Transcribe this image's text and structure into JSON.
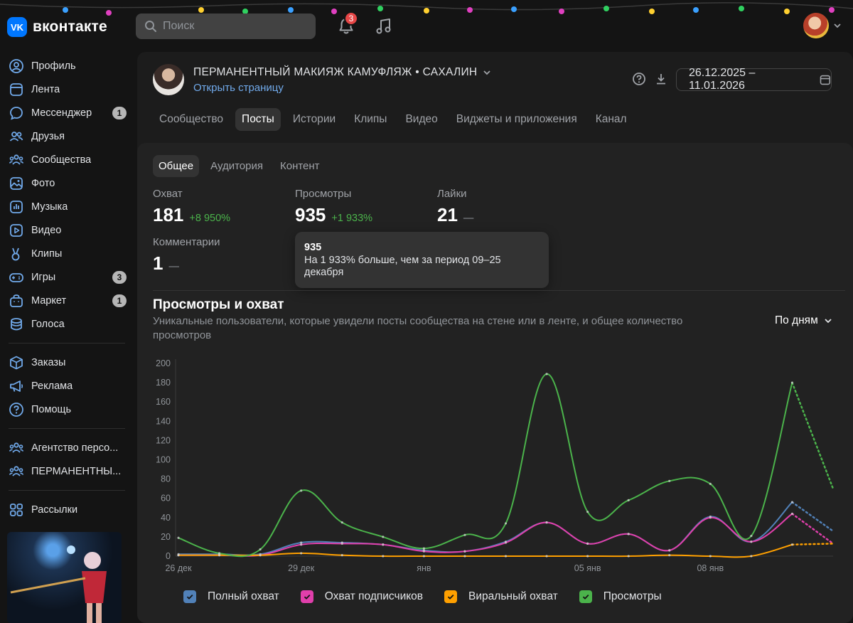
{
  "app": {
    "logo_mark": "VK",
    "logo_text": "вконтакте"
  },
  "header": {
    "search_placeholder": "Поиск",
    "notifications_count": "3"
  },
  "sidebar": {
    "items": [
      {
        "name": "profile",
        "label": "Профиль",
        "icon": "user-circle-icon",
        "badge": ""
      },
      {
        "name": "feed",
        "label": "Лента",
        "icon": "feed-icon",
        "badge": ""
      },
      {
        "name": "messenger",
        "label": "Мессенджер",
        "icon": "message-icon",
        "badge": "1"
      },
      {
        "name": "friends",
        "label": "Друзья",
        "icon": "users-icon",
        "badge": ""
      },
      {
        "name": "communities",
        "label": "Сообщества",
        "icon": "groups-icon",
        "badge": ""
      },
      {
        "name": "photo",
        "label": "Фото",
        "icon": "photo-icon",
        "badge": ""
      },
      {
        "name": "music",
        "label": "Музыка",
        "icon": "music-icon",
        "badge": ""
      },
      {
        "name": "video",
        "label": "Видео",
        "icon": "video-icon",
        "badge": ""
      },
      {
        "name": "clips",
        "label": "Клипы",
        "icon": "clips-icon",
        "badge": ""
      },
      {
        "name": "games",
        "label": "Игры",
        "icon": "gamepad-icon",
        "badge": "3"
      },
      {
        "name": "market",
        "label": "Маркет",
        "icon": "bag-icon",
        "badge": "1"
      },
      {
        "name": "votes",
        "label": "Голоса",
        "icon": "coins-icon",
        "badge": ""
      }
    ],
    "items2": [
      {
        "name": "orders",
        "label": "Заказы",
        "icon": "box-icon"
      },
      {
        "name": "ads",
        "label": "Реклама",
        "icon": "megaphone-icon"
      },
      {
        "name": "help",
        "label": "Помощь",
        "icon": "help-icon"
      }
    ],
    "items3": [
      {
        "name": "agency",
        "label": "Агентство персо...",
        "icon": "groups-icon"
      },
      {
        "name": "permanent",
        "label": "ПЕРМАНЕНТНЫ...",
        "icon": "groups-icon"
      }
    ],
    "items4": [
      {
        "name": "mailings",
        "label": "Рассылки",
        "icon": "grid-icon"
      }
    ]
  },
  "community": {
    "title": "ПЕРМАНЕНТНЫЙ МАКИЯЖ КАМУФЛЯЖ • САХАЛИН",
    "open_link": "Открыть страницу",
    "date_range": "26.12.2025 – 11.01.2026"
  },
  "tabs": [
    "Сообщество",
    "Посты",
    "Истории",
    "Клипы",
    "Видео",
    "Виджеты и приложения",
    "Канал"
  ],
  "subtabs": [
    "Общее",
    "Аудитория",
    "Контент"
  ],
  "metrics": [
    {
      "label": "Охват",
      "value": "181",
      "delta": "+8 950%"
    },
    {
      "label": "Просмотры",
      "value": "935",
      "delta": "+1 933%"
    },
    {
      "label": "Лайки",
      "value": "21",
      "delta": "—"
    },
    {
      "label": "Комментарии",
      "value": "1",
      "delta": "—"
    }
  ],
  "tooltip": {
    "title": "935",
    "text": "На 1 933% больше, чем за период 09–25 декабря"
  },
  "chart_section": {
    "title": "Просмотры и охват",
    "subtitle": "Уникальные пользователи, которые увидели посты сообщества на стене или в ленте, и общее количество просмотров",
    "period": "По дням"
  },
  "chart_data": {
    "type": "line",
    "x": [
      "26 дек",
      "27 дек",
      "28 дек",
      "29 дек",
      "30 дек",
      "31 дек",
      "01 янв",
      "02 янв",
      "03 янв",
      "04 янв",
      "05 янв",
      "06 янв",
      "07 янв",
      "08 янв",
      "09 янв",
      "10 янв",
      "11 янв"
    ],
    "x_tick_labels": [
      "26 дек",
      "29 дек",
      "янв",
      "05 янв",
      "08 янв"
    ],
    "x_tick_index": [
      0,
      3,
      6,
      10,
      13
    ],
    "ylim": [
      0,
      200
    ],
    "y_ticks": [
      0,
      20,
      40,
      60,
      80,
      100,
      120,
      140,
      160,
      180,
      200
    ],
    "series": [
      {
        "name": "Полный охват",
        "color": "#5181b8",
        "values": [
          2,
          2,
          2,
          14,
          14,
          12,
          6,
          5,
          15,
          35,
          13,
          23,
          6,
          41,
          15,
          56,
          26
        ],
        "dashed_from": 15
      },
      {
        "name": "Охват подписчиков",
        "color": "#e03fab",
        "values": [
          1,
          1,
          1,
          12,
          13,
          12,
          5,
          5,
          14,
          35,
          13,
          23,
          6,
          40,
          15,
          44,
          13
        ],
        "dashed_from": 15
      },
      {
        "name": "Виральный охват",
        "color": "#ffa000",
        "values": [
          1,
          1,
          1,
          3,
          1,
          0,
          0,
          0,
          0,
          0,
          0,
          0,
          1,
          0,
          0,
          12,
          13
        ],
        "dashed_from": 15
      },
      {
        "name": "Просмотры",
        "color": "#4bb34b",
        "values": [
          19,
          3,
          7,
          68,
          35,
          20,
          8,
          22,
          34,
          189,
          46,
          58,
          78,
          75,
          21,
          180,
          70
        ],
        "dashed_from": 15
      }
    ],
    "grid": false,
    "legend_position": "bottom"
  }
}
